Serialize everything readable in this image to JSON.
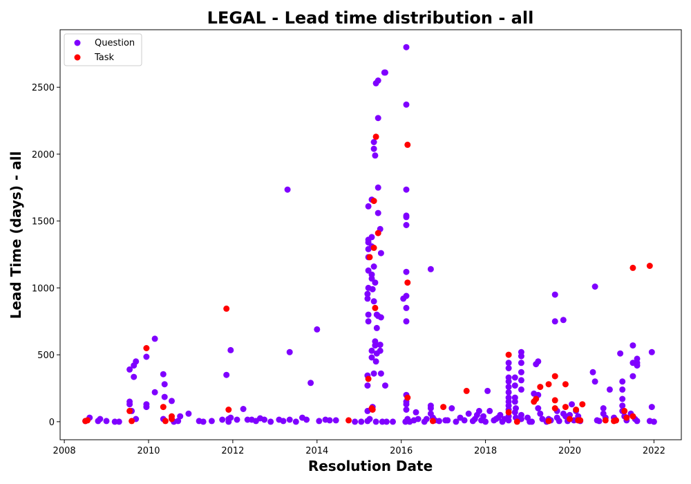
{
  "chart_data": {
    "type": "scatter",
    "title": "LEGAL - Lead time distribution - all",
    "xlabel": "Resolution Date",
    "ylabel": "Lead Time (days) - all",
    "xlim": [
      2007.9,
      2022.65
    ],
    "ylim": [
      -135,
      2930
    ],
    "x_ticks": [
      2008,
      2010,
      2012,
      2014,
      2016,
      2018,
      2020,
      2022
    ],
    "y_ticks": [
      0,
      500,
      1000,
      1500,
      2000,
      2500
    ],
    "grid": false,
    "legend_position": "top-left",
    "series": [
      {
        "name": "Question",
        "color": "#7f00ff",
        "points": [
          [
            2008.5,
            5
          ],
          [
            2008.6,
            30
          ],
          [
            2008.8,
            5
          ],
          [
            2008.85,
            20
          ],
          [
            2009.0,
            5
          ],
          [
            2009.2,
            0
          ],
          [
            2009.3,
            0
          ],
          [
            2009.55,
            150
          ],
          [
            2009.55,
            130
          ],
          [
            2009.55,
            390
          ],
          [
            2009.6,
            80
          ],
          [
            2009.65,
            420
          ],
          [
            2009.7,
            450
          ],
          [
            2009.65,
            335
          ],
          [
            2009.7,
            20
          ],
          [
            2009.95,
            110
          ],
          [
            2009.95,
            130
          ],
          [
            2009.95,
            485
          ],
          [
            2010.15,
            620
          ],
          [
            2010.15,
            220
          ],
          [
            2010.35,
            355
          ],
          [
            2010.38,
            280
          ],
          [
            2010.38,
            185
          ],
          [
            2010.35,
            20
          ],
          [
            2010.55,
            155
          ],
          [
            2010.6,
            0
          ],
          [
            2010.7,
            5
          ],
          [
            2010.75,
            40
          ],
          [
            2010.95,
            60
          ],
          [
            2011.2,
            5
          ],
          [
            2011.3,
            0
          ],
          [
            2011.5,
            5
          ],
          [
            2011.75,
            15
          ],
          [
            2011.85,
            350
          ],
          [
            2011.9,
            0
          ],
          [
            2011.9,
            20
          ],
          [
            2011.95,
            30
          ],
          [
            2011.95,
            535
          ],
          [
            2012.1,
            15
          ],
          [
            2012.25,
            95
          ],
          [
            2012.35,
            15
          ],
          [
            2012.45,
            15
          ],
          [
            2012.55,
            5
          ],
          [
            2012.65,
            25
          ],
          [
            2012.75,
            15
          ],
          [
            2012.9,
            0
          ],
          [
            2013.1,
            15
          ],
          [
            2013.2,
            5
          ],
          [
            2013.3,
            1735
          ],
          [
            2013.35,
            520
          ],
          [
            2013.35,
            15
          ],
          [
            2013.5,
            0
          ],
          [
            2013.65,
            30
          ],
          [
            2013.75,
            15
          ],
          [
            2013.85,
            290
          ],
          [
            2014.0,
            690
          ],
          [
            2014.05,
            5
          ],
          [
            2014.2,
            15
          ],
          [
            2014.3,
            10
          ],
          [
            2014.45,
            10
          ],
          [
            2014.9,
            0
          ],
          [
            2015.05,
            0
          ],
          [
            2015.2,
            5
          ],
          [
            2015.2,
            80
          ],
          [
            2015.2,
            270
          ],
          [
            2015.2,
            345
          ],
          [
            2015.22,
            750
          ],
          [
            2015.22,
            800
          ],
          [
            2015.2,
            920
          ],
          [
            2015.2,
            955
          ],
          [
            2015.22,
            1000
          ],
          [
            2015.22,
            1130
          ],
          [
            2015.22,
            1230
          ],
          [
            2015.22,
            1290
          ],
          [
            2015.22,
            1340
          ],
          [
            2015.22,
            1360
          ],
          [
            2015.22,
            1610
          ],
          [
            2015.25,
            20
          ],
          [
            2015.3,
            1660
          ],
          [
            2015.3,
            1380
          ],
          [
            2015.3,
            1310
          ],
          [
            2015.3,
            1100
          ],
          [
            2015.3,
            1070
          ],
          [
            2015.32,
            990
          ],
          [
            2015.3,
            530
          ],
          [
            2015.3,
            480
          ],
          [
            2015.32,
            110
          ],
          [
            2015.35,
            2040
          ],
          [
            2015.35,
            2090
          ],
          [
            2015.38,
            1990
          ],
          [
            2015.35,
            1160
          ],
          [
            2015.38,
            1040
          ],
          [
            2015.35,
            900
          ],
          [
            2015.38,
            600
          ],
          [
            2015.38,
            570
          ],
          [
            2015.35,
            360
          ],
          [
            2015.4,
            0
          ],
          [
            2015.4,
            2530
          ],
          [
            2015.42,
            800
          ],
          [
            2015.42,
            700
          ],
          [
            2015.42,
            510
          ],
          [
            2015.4,
            450
          ],
          [
            2015.45,
            2550
          ],
          [
            2015.45,
            2270
          ],
          [
            2015.45,
            1750
          ],
          [
            2015.45,
            1560
          ],
          [
            2015.5,
            1440
          ],
          [
            2015.45,
            790
          ],
          [
            2015.5,
            530
          ],
          [
            2015.52,
            1260
          ],
          [
            2015.52,
            780
          ],
          [
            2015.5,
            575
          ],
          [
            2015.52,
            360
          ],
          [
            2015.55,
            0
          ],
          [
            2015.6,
            2610
          ],
          [
            2015.62,
            2610
          ],
          [
            2015.62,
            270
          ],
          [
            2015.65,
            0
          ],
          [
            2015.8,
            0
          ],
          [
            2016.05,
            920
          ],
          [
            2016.1,
            0
          ],
          [
            2016.12,
            2800
          ],
          [
            2016.12,
            2370
          ],
          [
            2016.12,
            1735
          ],
          [
            2016.12,
            1540
          ],
          [
            2016.12,
            1530
          ],
          [
            2016.12,
            1470
          ],
          [
            2016.12,
            1120
          ],
          [
            2016.12,
            940
          ],
          [
            2016.12,
            850
          ],
          [
            2016.12,
            750
          ],
          [
            2016.12,
            200
          ],
          [
            2016.12,
            150
          ],
          [
            2016.12,
            130
          ],
          [
            2016.12,
            90
          ],
          [
            2016.15,
            20
          ],
          [
            2016.2,
            0
          ],
          [
            2016.3,
            10
          ],
          [
            2016.35,
            70
          ],
          [
            2016.4,
            20
          ],
          [
            2016.55,
            0
          ],
          [
            2016.6,
            20
          ],
          [
            2016.7,
            1140
          ],
          [
            2016.7,
            120
          ],
          [
            2016.7,
            100
          ],
          [
            2016.7,
            60
          ],
          [
            2016.75,
            30
          ],
          [
            2016.8,
            10
          ],
          [
            2016.9,
            5
          ],
          [
            2017.05,
            10
          ],
          [
            2017.1,
            10
          ],
          [
            2017.2,
            100
          ],
          [
            2017.3,
            0
          ],
          [
            2017.4,
            30
          ],
          [
            2017.5,
            10
          ],
          [
            2017.6,
            60
          ],
          [
            2017.7,
            5
          ],
          [
            2017.75,
            20
          ],
          [
            2017.8,
            50
          ],
          [
            2017.85,
            80
          ],
          [
            2017.9,
            10
          ],
          [
            2017.95,
            40
          ],
          [
            2018.0,
            0
          ],
          [
            2018.05,
            230
          ],
          [
            2018.1,
            80
          ],
          [
            2018.2,
            10
          ],
          [
            2018.25,
            20
          ],
          [
            2018.3,
            30
          ],
          [
            2018.35,
            50
          ],
          [
            2018.4,
            0
          ],
          [
            2018.45,
            20
          ],
          [
            2018.55,
            440
          ],
          [
            2018.55,
            400
          ],
          [
            2018.55,
            330
          ],
          [
            2018.55,
            300
          ],
          [
            2018.55,
            260
          ],
          [
            2018.55,
            220
          ],
          [
            2018.55,
            180
          ],
          [
            2018.55,
            150
          ],
          [
            2018.55,
            120
          ],
          [
            2018.55,
            90
          ],
          [
            2018.55,
            40
          ],
          [
            2018.55,
            10
          ],
          [
            2018.7,
            330
          ],
          [
            2018.7,
            270
          ],
          [
            2018.7,
            180
          ],
          [
            2018.7,
            150
          ],
          [
            2018.72,
            100
          ],
          [
            2018.7,
            70
          ],
          [
            2018.72,
            30
          ],
          [
            2018.85,
            520
          ],
          [
            2018.85,
            490
          ],
          [
            2018.85,
            440
          ],
          [
            2018.85,
            370
          ],
          [
            2018.85,
            310
          ],
          [
            2018.85,
            240
          ],
          [
            2018.85,
            50
          ],
          [
            2018.85,
            20
          ],
          [
            2019.0,
            30
          ],
          [
            2019.05,
            0
          ],
          [
            2019.1,
            0
          ],
          [
            2019.15,
            210
          ],
          [
            2019.2,
            430
          ],
          [
            2019.25,
            450
          ],
          [
            2019.25,
            200
          ],
          [
            2019.25,
            100
          ],
          [
            2019.3,
            60
          ],
          [
            2019.35,
            20
          ],
          [
            2019.45,
            0
          ],
          [
            2019.5,
            20
          ],
          [
            2019.55,
            10
          ],
          [
            2019.65,
            950
          ],
          [
            2019.65,
            750
          ],
          [
            2019.7,
            80
          ],
          [
            2019.7,
            30
          ],
          [
            2019.75,
            5
          ],
          [
            2019.85,
            760
          ],
          [
            2019.85,
            60
          ],
          [
            2019.9,
            40
          ],
          [
            2019.95,
            5
          ],
          [
            2020.0,
            50
          ],
          [
            2020.05,
            130
          ],
          [
            2020.1,
            10
          ],
          [
            2020.15,
            80
          ],
          [
            2020.2,
            40
          ],
          [
            2020.25,
            5
          ],
          [
            2020.55,
            370
          ],
          [
            2020.6,
            300
          ],
          [
            2020.6,
            1010
          ],
          [
            2020.65,
            10
          ],
          [
            2020.7,
            5
          ],
          [
            2020.8,
            100
          ],
          [
            2020.8,
            60
          ],
          [
            2020.85,
            30
          ],
          [
            2020.95,
            240
          ],
          [
            2021.05,
            30
          ],
          [
            2021.1,
            10
          ],
          [
            2021.2,
            510
          ],
          [
            2021.25,
            300
          ],
          [
            2021.25,
            240
          ],
          [
            2021.25,
            170
          ],
          [
            2021.25,
            120
          ],
          [
            2021.25,
            80
          ],
          [
            2021.3,
            40
          ],
          [
            2021.35,
            10
          ],
          [
            2021.45,
            60
          ],
          [
            2021.5,
            570
          ],
          [
            2021.5,
            440
          ],
          [
            2021.5,
            340
          ],
          [
            2021.55,
            20
          ],
          [
            2021.6,
            470
          ],
          [
            2021.6,
            440
          ],
          [
            2021.6,
            420
          ],
          [
            2021.6,
            5
          ],
          [
            2021.9,
            5
          ],
          [
            2021.95,
            520
          ],
          [
            2021.95,
            110
          ],
          [
            2022.0,
            0
          ]
        ]
      },
      {
        "name": "Task",
        "color": "#ff0000",
        "points": [
          [
            2008.5,
            5
          ],
          [
            2008.55,
            10
          ],
          [
            2009.55,
            80
          ],
          [
            2009.6,
            5
          ],
          [
            2009.95,
            550
          ],
          [
            2010.35,
            110
          ],
          [
            2010.4,
            5
          ],
          [
            2010.55,
            40
          ],
          [
            2010.55,
            20
          ],
          [
            2011.85,
            845
          ],
          [
            2011.9,
            90
          ],
          [
            2014.75,
            10
          ],
          [
            2015.22,
            320
          ],
          [
            2015.25,
            1230
          ],
          [
            2015.3,
            100
          ],
          [
            2015.32,
            90
          ],
          [
            2015.35,
            1650
          ],
          [
            2015.35,
            1300
          ],
          [
            2015.38,
            850
          ],
          [
            2015.4,
            2130
          ],
          [
            2015.45,
            1410
          ],
          [
            2016.15,
            2070
          ],
          [
            2016.15,
            1040
          ],
          [
            2016.15,
            180
          ],
          [
            2016.75,
            5
          ],
          [
            2017.0,
            110
          ],
          [
            2017.55,
            230
          ],
          [
            2018.55,
            500
          ],
          [
            2018.55,
            70
          ],
          [
            2018.75,
            0
          ],
          [
            2019.15,
            150
          ],
          [
            2019.2,
            170
          ],
          [
            2019.3,
            260
          ],
          [
            2019.5,
            280
          ],
          [
            2019.5,
            5
          ],
          [
            2019.65,
            340
          ],
          [
            2019.65,
            160
          ],
          [
            2019.65,
            100
          ],
          [
            2019.9,
            280
          ],
          [
            2019.9,
            110
          ],
          [
            2020.0,
            20
          ],
          [
            2020.15,
            90
          ],
          [
            2020.2,
            10
          ],
          [
            2020.25,
            10
          ],
          [
            2020.3,
            130
          ],
          [
            2020.85,
            10
          ],
          [
            2021.05,
            5
          ],
          [
            2021.1,
            10
          ],
          [
            2021.3,
            80
          ],
          [
            2021.35,
            30
          ],
          [
            2021.5,
            1150
          ],
          [
            2021.5,
            40
          ],
          [
            2021.9,
            1165
          ]
        ]
      }
    ]
  }
}
